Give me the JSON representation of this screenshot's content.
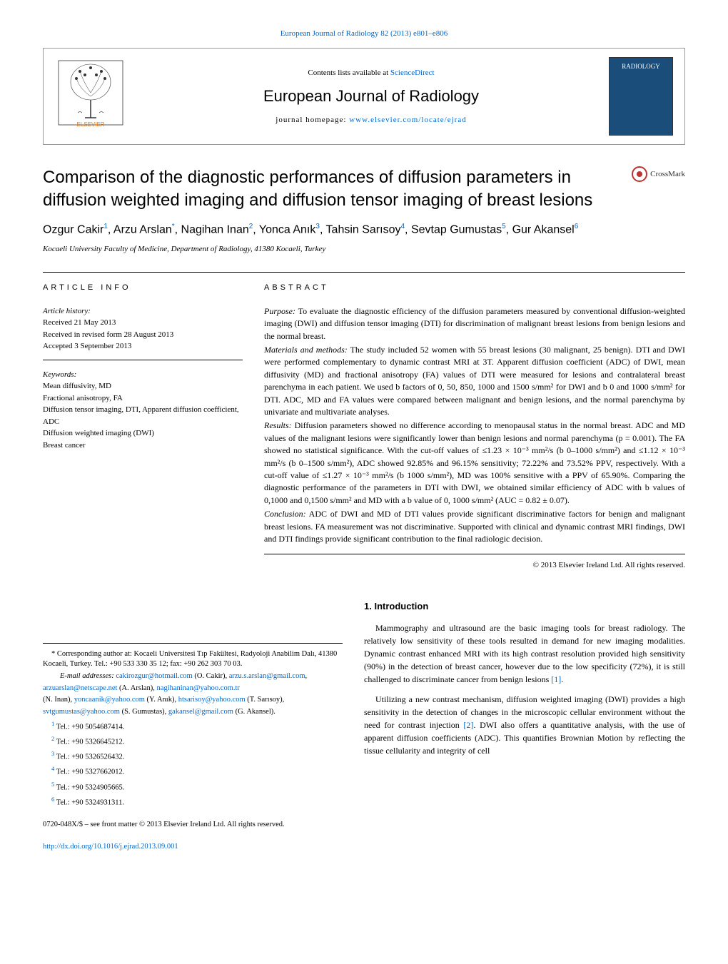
{
  "header_citation": "European Journal of Radiology 82 (2013) e801–e806",
  "banner": {
    "contents_prefix": "Contents lists available at ",
    "contents_link": "ScienceDirect",
    "journal_name": "European Journal of Radiology",
    "homepage_prefix": "journal homepage: ",
    "homepage_link": "www.elsevier.com/locate/ejrad",
    "cover_label": "RADIOLOGY"
  },
  "article": {
    "title": "Comparison of the diagnostic performances of diffusion parameters in diffusion weighted imaging and diffusion tensor imaging of breast lesions",
    "crossmark": "CrossMark",
    "authors_html": "Ozgur Cakir<sup>1</sup>, Arzu Arslan<sup>*</sup>, Nagihan Inan<sup>2</sup>, Yonca Anık<sup>3</sup>, Tahsin Sarısoy<sup>4</sup>, Sevtap Gumustas<sup>5</sup>, Gur Akansel<sup>6</sup>",
    "affiliation": "Kocaeli University Faculty of Medicine, Department of Radiology, 41380 Kocaeli, Turkey"
  },
  "article_info": {
    "heading": "ARTICLE INFO",
    "history_label": "Article history:",
    "history_lines": [
      "Received 21 May 2013",
      "Received in revised form 28 August 2013",
      "Accepted 3 September 2013"
    ],
    "keywords_label": "Keywords:",
    "keywords": [
      "Mean diffusivity, MD",
      "Fractional anisotropy, FA",
      "Diffusion tensor imaging, DTI, Apparent diffusion coefficient, ADC",
      "Diffusion weighted imaging (DWI)",
      "Breast cancer"
    ]
  },
  "abstract": {
    "heading": "ABSTRACT",
    "purpose_label": "Purpose:",
    "purpose": " To evaluate the diagnostic efficiency of the diffusion parameters measured by conventional diffusion-weighted imaging (DWI) and diffusion tensor imaging (DTI) for discrimination of malignant breast lesions from benign lesions and the normal breast.",
    "methods_label": "Materials and methods:",
    "methods": " The study included 52 women with 55 breast lesions (30 malignant, 25 benign). DTI and DWI were performed complementary to dynamic contrast MRI at 3T. Apparent diffusion coefficient (ADC) of DWI, mean diffusivity (MD) and fractional anisotropy (FA) values of DTI were measured for lesions and contralateral breast parenchyma in each patient. We used b factors of 0, 50, 850, 1000 and 1500 s/mm² for DWI and b 0 and 1000 s/mm² for DTI. ADC, MD and FA values were compared between malignant and benign lesions, and the normal parenchyma by univariate and multivariate analyses.",
    "results_label": "Results:",
    "results": " Diffusion parameters showed no difference according to menopausal status in the normal breast. ADC and MD values of the malignant lesions were significantly lower than benign lesions and normal parenchyma (p = 0.001). The FA showed no statistical significance. With the cut-off values of ≤1.23 × 10⁻³ mm²/s (b 0–1000 s/mm²) and ≤1.12 × 10⁻³ mm²/s (b 0–1500 s/mm²), ADC showed 92.85% and 96.15% sensitivity; 72.22% and 73.52% PPV, respectively. With a cut-off value of ≤1.27 × 10⁻³ mm²/s (b 1000 s/mm²), MD was 100% sensitive with a PPV of 65.90%. Comparing the diagnostic performance of the parameters in DTI with DWI, we obtained similar efficiency of ADC with b values of 0,1000 and 0,1500 s/mm² and MD with a b value of 0, 1000 s/mm² (AUC = 0.82 ± 0.07).",
    "conclusion_label": "Conclusion:",
    "conclusion": " ADC of DWI and MD of DTI values provide significant discriminative factors for benign and malignant breast lesions. FA measurement was not discriminative. Supported with clinical and dynamic contrast MRI findings, DWI and DTI findings provide significant contribution to the final radiologic decision.",
    "copyright": "© 2013 Elsevier Ireland Ltd. All rights reserved."
  },
  "introduction": {
    "heading": "1. Introduction",
    "para1": "Mammography and ultrasound are the basic imaging tools for breast radiology. The relatively low sensitivity of these tools resulted in demand for new imaging modalities. Dynamic contrast enhanced MRI with its high contrast resolution provided high sensitivity (90%) in the detection of breast cancer, however due to the low specificity (72%), it is still challenged to discriminate cancer from benign lesions ",
    "ref1": "[1]",
    "para1_end": ".",
    "para2": "Utilizing a new contrast mechanism, diffusion weighted imaging (DWI) provides a high sensitivity in the detection of changes in the microscopic cellular environment without the need for contrast injection ",
    "ref2": "[2]",
    "para2_end": ". DWI also offers a quantitative analysis, with the use of apparent diffusion coefficients (ADC). This quantifies Brownian Motion by reflecting the tissue cellularity and integrity of cell"
  },
  "footnotes": {
    "corresponding": "* Corresponding author at: Kocaeli Universitesi Tıp Fakültesi, Radyoloji Anabilim Dalı, 41380 Kocaeli, Turkey. Tel.: +90 533 330 35 12; fax: +90 262 303 70 03.",
    "emails_label": "E-mail addresses: ",
    "emails": [
      {
        "addr": "cakirozgur@hotmail.com",
        "who": " (O. Cakir), "
      },
      {
        "addr": "arzu.s.arslan@gmail.com",
        "who": ", "
      },
      {
        "addr": "arzuarslan@netscape.net",
        "who": " (A. Arslan), "
      },
      {
        "addr": "nagihaninan@yahoo.com.tr",
        "who": ""
      }
    ],
    "emails_line2": [
      {
        "who_pre": "(N. Inan), ",
        "addr": "yoncaanik@yahoo.com",
        "who": " (Y. Anık), "
      },
      {
        "who_pre": "",
        "addr": "htsarisoy@yahoo.com",
        "who": " (T. Sarısoy), "
      }
    ],
    "emails_line3": [
      {
        "who_pre": "",
        "addr": "svtgumustas@yahoo.com",
        "who": " (S. Gumustas), "
      },
      {
        "who_pre": "",
        "addr": "gakansel@gmail.com",
        "who": " (G. Akansel)."
      }
    ],
    "tels": [
      {
        "num": "1",
        "text": " Tel.: +90 5054687414."
      },
      {
        "num": "2",
        "text": " Tel.: +90 5326645212."
      },
      {
        "num": "3",
        "text": " Tel.: +90 5326526432."
      },
      {
        "num": "4",
        "text": " Tel.: +90 5327662012."
      },
      {
        "num": "5",
        "text": " Tel.: +90 5324905665."
      },
      {
        "num": "6",
        "text": " Tel.: +90 5324931311."
      }
    ]
  },
  "bottom": {
    "issn": "0720-048X/$ – see front matter © 2013 Elsevier Ireland Ltd. All rights reserved.",
    "doi": "http://dx.doi.org/10.1016/j.ejrad.2013.09.001"
  },
  "colors": {
    "link": "#0066cc",
    "rule": "#000000",
    "cover_bg": "#1a4d7a",
    "crossmark_ring": "#b33333"
  }
}
